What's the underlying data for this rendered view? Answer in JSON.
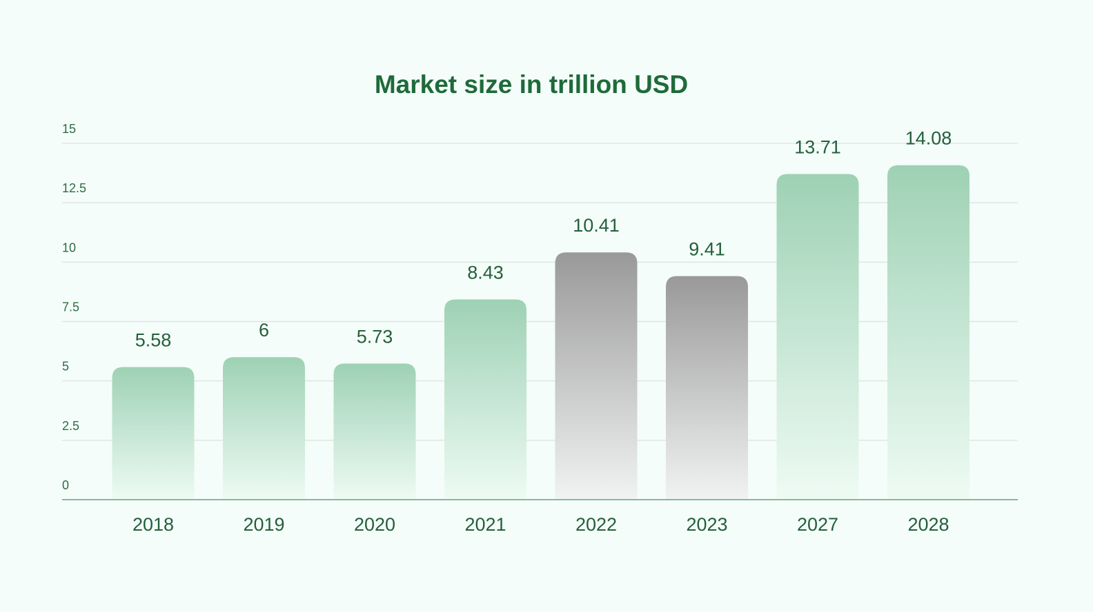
{
  "chart_data": {
    "type": "bar",
    "title": "Market size in trillion USD",
    "xlabel": "",
    "ylabel": "",
    "categories": [
      "2018",
      "2019",
      "2020",
      "2021",
      "2022",
      "2023",
      "2027",
      "2028"
    ],
    "values": [
      5.58,
      6,
      5.73,
      8.43,
      10.41,
      9.41,
      13.71,
      14.08
    ],
    "data_labels": [
      "5.58",
      "6",
      "5.73",
      "8.43",
      "10.41",
      "9.41",
      "13.71",
      "14.08"
    ],
    "y_ticks": [
      "0",
      "2.5",
      "5",
      "7.5",
      "10",
      "12.5",
      "15"
    ],
    "ylim": [
      0,
      15
    ],
    "grid": true,
    "legend": "none",
    "colors": {
      "highlight_top": "#9ed1b4",
      "highlight_bottom": "#eefbf4",
      "muted_top": "#999999",
      "muted_bottom": "#f1f3f2",
      "text": "#235f3c"
    },
    "muted_categories": [
      "2022",
      "2023"
    ]
  }
}
